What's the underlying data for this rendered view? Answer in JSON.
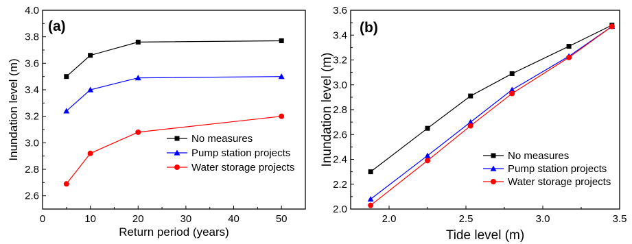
{
  "chart_data": [
    {
      "type": "line",
      "panel_label": "(a)",
      "xlabel": "Return period (years)",
      "ylabel": "Inundation level (m)",
      "xlim": [
        0,
        55
      ],
      "ylim": [
        2.5,
        4.0
      ],
      "xticks": [
        0,
        10,
        20,
        30,
        40,
        50
      ],
      "yticks": [
        2.6,
        2.8,
        3.0,
        3.2,
        3.4,
        3.6,
        3.8,
        4.0
      ],
      "xtick_labels": [
        "0",
        "10",
        "20",
        "30",
        "40",
        "50"
      ],
      "ytick_labels": [
        "2.6",
        "2.8",
        "3.0",
        "3.2",
        "3.4",
        "3.6",
        "3.8",
        "4.0"
      ],
      "grid": false,
      "legend_position": "bottom-right",
      "x": [
        5,
        10,
        20,
        50
      ],
      "series": [
        {
          "name": "No measures",
          "values": [
            3.5,
            3.66,
            3.76,
            3.77
          ],
          "color": "#000000",
          "marker": "square"
        },
        {
          "name": "Pump station projects",
          "values": [
            3.24,
            3.4,
            3.49,
            3.5
          ],
          "color": "#0000ff",
          "marker": "triangle"
        },
        {
          "name": "Water storage projects",
          "values": [
            2.69,
            2.92,
            3.08,
            3.2
          ],
          "color": "#ff0000",
          "marker": "circle"
        }
      ]
    },
    {
      "type": "line",
      "panel_label": "(b)",
      "xlabel": "Tide level (m)",
      "ylabel": "Inundation level (m)",
      "xlim": [
        1.75,
        3.5
      ],
      "ylim": [
        2.0,
        3.6
      ],
      "xticks": [
        2.0,
        2.5,
        3.0,
        3.5
      ],
      "yticks": [
        2.0,
        2.2,
        2.4,
        2.6,
        2.8,
        3.0,
        3.2,
        3.4,
        3.6
      ],
      "xtick_labels": [
        "2.0",
        "2.5",
        "3.0",
        "3.5"
      ],
      "ytick_labels": [
        "2.0",
        "2.2",
        "2.4",
        "2.6",
        "2.8",
        "3.0",
        "3.2",
        "3.4",
        "3.6"
      ],
      "grid": false,
      "legend_position": "bottom-right",
      "x": [
        1.88,
        2.25,
        2.53,
        2.8,
        3.17,
        3.45
      ],
      "series": [
        {
          "name": "No measures",
          "values": [
            2.3,
            2.65,
            2.91,
            3.09,
            3.31,
            3.48
          ],
          "color": "#000000",
          "marker": "square"
        },
        {
          "name": "Pump station projects",
          "values": [
            2.08,
            2.43,
            2.7,
            2.96,
            3.23,
            3.47
          ],
          "color": "#0000ff",
          "marker": "triangle"
        },
        {
          "name": "Water storage projects",
          "values": [
            2.03,
            2.39,
            2.67,
            2.93,
            3.22,
            3.47
          ],
          "color": "#ff0000",
          "marker": "circle"
        }
      ]
    }
  ]
}
